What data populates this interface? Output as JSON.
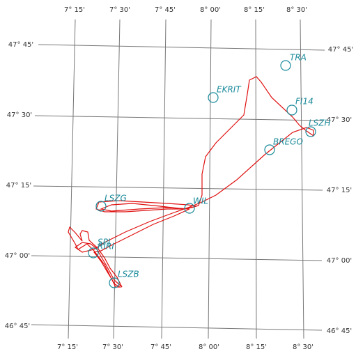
{
  "graticule": {
    "longitudes": [
      "7° 15'",
      "7° 30'",
      "7° 45'",
      "8° 00'",
      "8° 15'",
      "8° 30'"
    ],
    "latitudes": [
      "47° 45'",
      "47° 30'",
      "47° 15'",
      "47° 00'",
      "46° 45'"
    ]
  },
  "waypoints": [
    "TRA",
    "EKRIT",
    "FI14",
    "LSZH",
    "BREGO",
    "LSZG",
    "WIL",
    "SPI",
    "RIRI",
    "LSZB"
  ]
}
